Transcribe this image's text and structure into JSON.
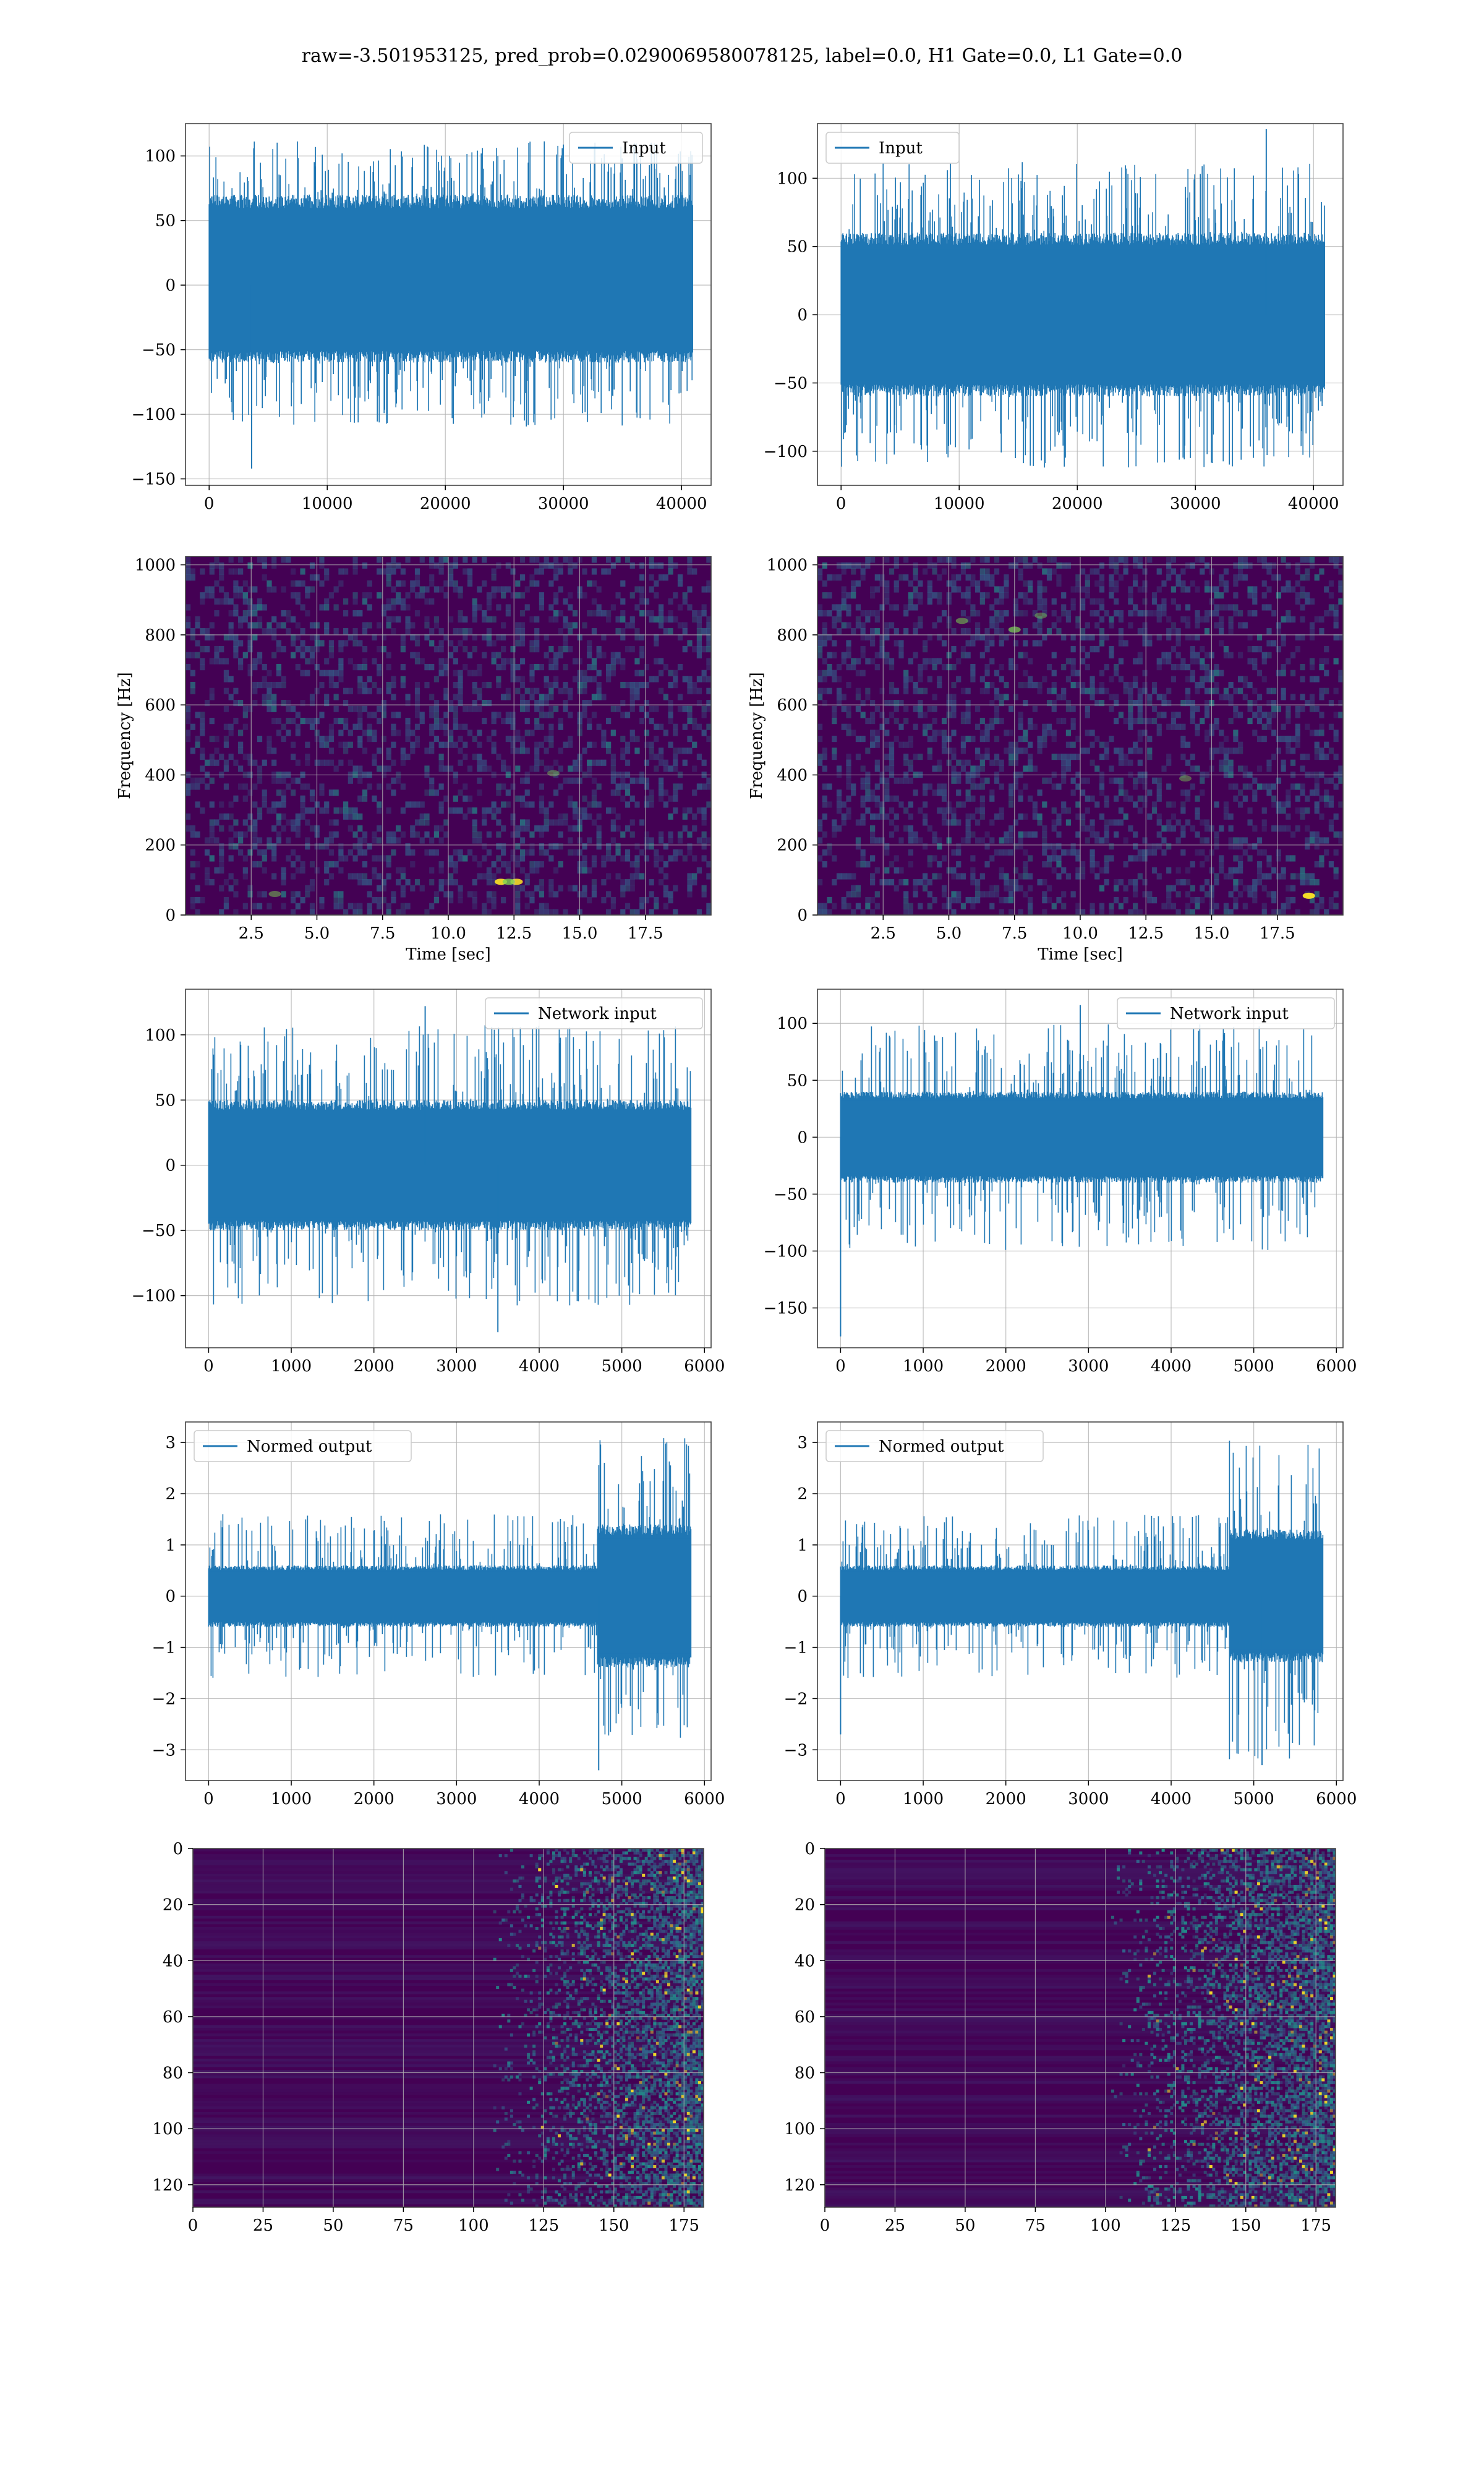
{
  "figure": {
    "title": "raw=-3.501953125, pred_prob=0.0290069580078125, label=0.0, H1 Gate=0.0, L1 Gate=0.0"
  },
  "colors": {
    "line": "#1f77b4",
    "grid": "#b0b0b0",
    "viridis_dark": "#440154",
    "viridis_mid": "#21918c",
    "viridis_bright": "#fde725"
  },
  "chart_data": [
    {
      "id": "input-h1",
      "type": "line",
      "legend": "Input",
      "legend_loc": "upper right",
      "xlim": [
        -2000,
        42500
      ],
      "ylim": [
        -155,
        125
      ],
      "xticks": [
        0,
        10000,
        20000,
        30000,
        40000
      ],
      "yticks": [
        -150,
        -100,
        -50,
        0,
        50,
        100
      ],
      "x": [
        0,
        40960
      ],
      "band": [
        -60,
        70
      ],
      "spike_range": [
        -110,
        112
      ],
      "spikes": [
        [
          3600,
          -142
        ]
      ],
      "xlabel": "",
      "ylabel": "",
      "grid": true
    },
    {
      "id": "input-l1",
      "type": "line",
      "legend": "Input",
      "legend_loc": "upper left",
      "xlim": [
        -2000,
        42500
      ],
      "ylim": [
        -125,
        140
      ],
      "xticks": [
        0,
        10000,
        20000,
        30000,
        40000
      ],
      "yticks": [
        -100,
        -50,
        0,
        50,
        100
      ],
      "x": [
        0,
        40960
      ],
      "band": [
        -60,
        60
      ],
      "spike_range": [
        -112,
        112
      ],
      "spikes": [
        [
          36000,
          136
        ]
      ],
      "xlabel": "",
      "ylabel": "",
      "grid": true
    },
    {
      "id": "spec-h1",
      "type": "heatmap",
      "colormap": "viridis",
      "xlim": [
        0,
        20
      ],
      "ylim": [
        0,
        1024
      ],
      "xticks": [
        2.5,
        5.0,
        7.5,
        10.0,
        12.5,
        15.0,
        17.5
      ],
      "yticks": [
        0,
        200,
        400,
        600,
        800,
        1000
      ],
      "xlabel": "Time [sec]",
      "ylabel": "Frequency [Hz]",
      "grid": true,
      "hotspots": [
        [
          12.0,
          95,
          0.9
        ],
        [
          12.6,
          95,
          0.85
        ],
        [
          12.3,
          95,
          0.8
        ],
        [
          3.4,
          60,
          0.5
        ],
        [
          14.0,
          405,
          0.45
        ]
      ]
    },
    {
      "id": "spec-l1",
      "type": "heatmap",
      "colormap": "viridis",
      "xlim": [
        0,
        20
      ],
      "ylim": [
        0,
        1024
      ],
      "xticks": [
        2.5,
        5.0,
        7.5,
        10.0,
        12.5,
        15.0,
        17.5
      ],
      "yticks": [
        0,
        200,
        400,
        600,
        800,
        1000
      ],
      "xlabel": "Time [sec]",
      "ylabel": "Frequency [Hz]",
      "grid": true,
      "hotspots": [
        [
          18.7,
          55,
          0.95
        ],
        [
          7.5,
          815,
          0.7
        ],
        [
          5.5,
          840,
          0.55
        ],
        [
          8.5,
          855,
          0.45
        ],
        [
          14.0,
          390,
          0.45
        ]
      ]
    },
    {
      "id": "netin-h1",
      "type": "line",
      "legend": "Network input",
      "legend_loc": "upper right",
      "xlim": [
        -280,
        6080
      ],
      "ylim": [
        -140,
        135
      ],
      "xticks": [
        0,
        1000,
        2000,
        3000,
        4000,
        5000,
        6000
      ],
      "yticks": [
        -100,
        -50,
        0,
        50,
        100
      ],
      "x": [
        0,
        5840
      ],
      "band": [
        -50,
        50
      ],
      "spike_range": [
        -108,
        108
      ],
      "spikes": [
        [
          2620,
          122
        ],
        [
          3500,
          -128
        ]
      ],
      "xlabel": "",
      "ylabel": "",
      "grid": true
    },
    {
      "id": "netin-l1",
      "type": "line",
      "legend": "Network input",
      "legend_loc": "upper right",
      "xlim": [
        -280,
        6080
      ],
      "ylim": [
        -185,
        130
      ],
      "xticks": [
        0,
        1000,
        2000,
        3000,
        4000,
        5000,
        6000
      ],
      "yticks": [
        -150,
        -100,
        -50,
        0,
        50,
        100
      ],
      "x": [
        0,
        5840
      ],
      "band": [
        -40,
        40
      ],
      "spike_range": [
        -100,
        100
      ],
      "spikes": [
        [
          0,
          -175
        ],
        [
          2900,
          116
        ]
      ],
      "xlabel": "",
      "ylabel": "",
      "grid": true
    },
    {
      "id": "norm-h1",
      "type": "line",
      "legend": "Normed output",
      "legend_loc": "upper left",
      "xlim": [
        -280,
        6080
      ],
      "ylim": [
        -3.6,
        3.4
      ],
      "xticks": [
        0,
        1000,
        2000,
        3000,
        4000,
        5000,
        6000
      ],
      "yticks": [
        -3,
        -2,
        -1,
        0,
        1,
        2,
        3
      ],
      "x": [
        0,
        5840
      ],
      "band": [
        -0.6,
        0.6
      ],
      "spike_range": [
        -1.6,
        1.6
      ],
      "burst": {
        "from": 4700,
        "band": [
          -1.4,
          1.4
        ],
        "spike_range": [
          -2.8,
          3.1
        ]
      },
      "spikes": [
        [
          4720,
          -3.4
        ]
      ],
      "xlabel": "",
      "ylabel": "",
      "grid": true
    },
    {
      "id": "norm-l1",
      "type": "line",
      "legend": "Normed output",
      "legend_loc": "upper left",
      "xlim": [
        -280,
        6080
      ],
      "ylim": [
        -3.6,
        3.4
      ],
      "xticks": [
        0,
        1000,
        2000,
        3000,
        4000,
        5000,
        6000
      ],
      "yticks": [
        -3,
        -2,
        -1,
        0,
        1,
        2,
        3
      ],
      "x": [
        0,
        5840
      ],
      "band": [
        -0.6,
        0.6
      ],
      "spike_range": [
        -1.6,
        1.6
      ],
      "burst": {
        "from": 4700,
        "band": [
          -1.3,
          1.3
        ],
        "spike_range": [
          -3.2,
          3.1
        ]
      },
      "spikes": [
        [
          0,
          -2.7
        ],
        [
          5100,
          -3.3
        ]
      ],
      "xlabel": "",
      "ylabel": "",
      "grid": true
    },
    {
      "id": "feat-h1",
      "type": "heatmap",
      "colormap": "viridis",
      "xlim": [
        0,
        182
      ],
      "ylim": [
        128,
        0
      ],
      "xticks": [
        0,
        25,
        50,
        75,
        100,
        125,
        150,
        175
      ],
      "yticks": [
        0,
        20,
        40,
        60,
        80,
        100,
        120
      ],
      "rows": 128,
      "cols": 182,
      "activity_from": 120,
      "xlabel": "",
      "ylabel": "",
      "grid": true
    },
    {
      "id": "feat-l1",
      "type": "heatmap",
      "colormap": "viridis",
      "xlim": [
        0,
        182
      ],
      "ylim": [
        128,
        0
      ],
      "xticks": [
        0,
        25,
        50,
        75,
        100,
        125,
        150,
        175
      ],
      "yticks": [
        0,
        20,
        40,
        60,
        80,
        100,
        120
      ],
      "rows": 128,
      "cols": 182,
      "activity_from": 115,
      "xlabel": "",
      "ylabel": "",
      "grid": true
    }
  ]
}
